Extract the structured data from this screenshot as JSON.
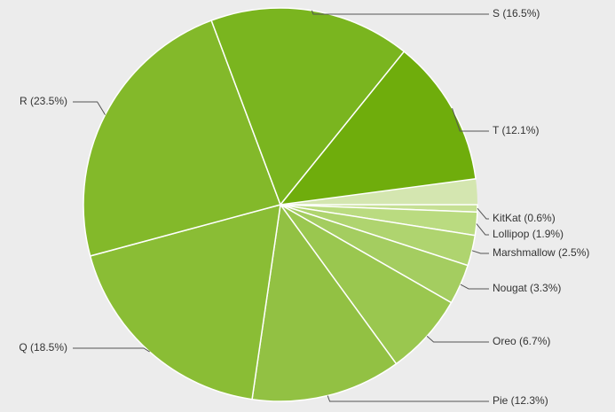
{
  "chart_data": {
    "type": "pie",
    "labels": [
      "KitKat (0.6%)",
      "Lollipop (1.9%)",
      "Marshmallow (2.5%)",
      "Nougat (3.3%)",
      "Oreo (6.7%)",
      "Pie (12.3%)",
      "Q (18.5%)",
      "R (23.5%)",
      "S (16.5%)",
      "T (12.1%)"
    ],
    "values": [
      0.6,
      1.9,
      2.5,
      3.3,
      6.7,
      12.3,
      18.5,
      23.5,
      16.5,
      12.1
    ],
    "colors": [
      "#c6e094",
      "#badb80",
      "#afd46f",
      "#a4cd60",
      "#9ac74f",
      "#92c143",
      "#8abd35",
      "#83b92a",
      "#7ab51f",
      "#6fad0c"
    ]
  }
}
